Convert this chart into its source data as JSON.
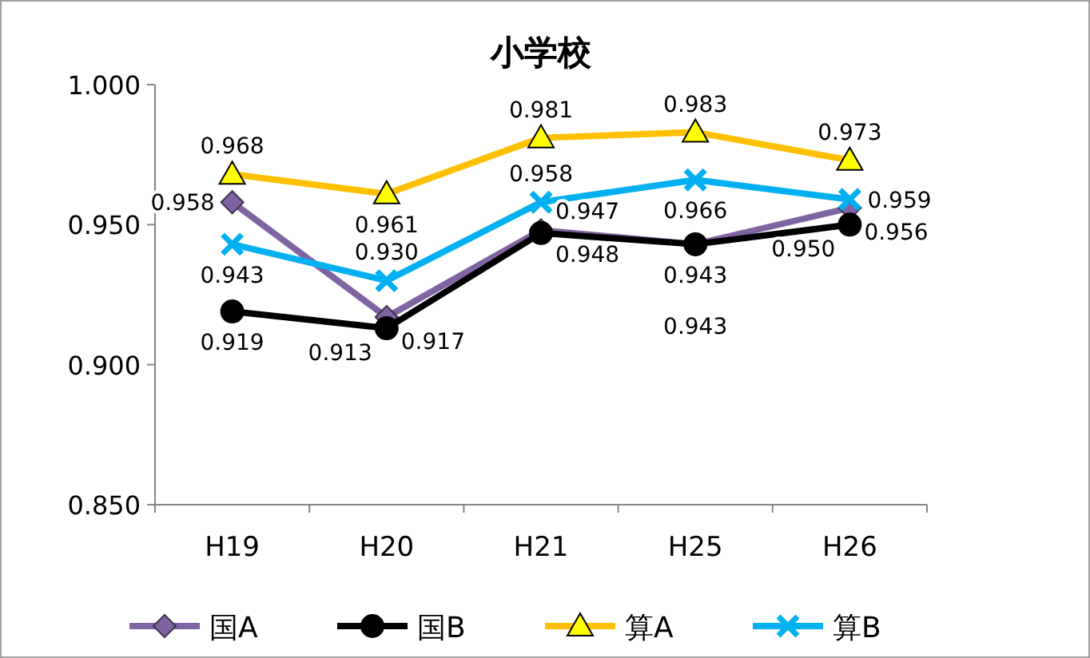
{
  "chart_data": {
    "type": "line",
    "title": "小学校",
    "categories": [
      "H19",
      "H20",
      "H21",
      "H25",
      "H26"
    ],
    "series": [
      {
        "name": "国A",
        "color": "#8064a2",
        "marker": "diamond",
        "values": [
          0.958,
          0.917,
          0.948,
          0.943,
          0.956
        ],
        "value_labels": [
          "0.958",
          "0.917",
          "0.948",
          "0.943",
          "0.956"
        ]
      },
      {
        "name": "国B",
        "color": "#000000",
        "marker": "circle",
        "values": [
          0.919,
          0.913,
          0.947,
          0.943,
          0.95
        ],
        "value_labels": [
          "0.919",
          "0.913",
          "0.947",
          "0.943",
          "0.950"
        ]
      },
      {
        "name": "算A",
        "color": "#ffc000",
        "marker": "triangle",
        "values": [
          0.968,
          0.961,
          0.981,
          0.983,
          0.973
        ],
        "value_labels": [
          "0.968",
          "0.961",
          "0.981",
          "0.983",
          "0.973"
        ]
      },
      {
        "name": "算B",
        "color": "#00b0f0",
        "marker": "cross",
        "values": [
          0.943,
          0.93,
          0.958,
          0.966,
          0.959
        ],
        "value_labels": [
          "0.943",
          "0.930",
          "0.958",
          "0.966",
          "0.959"
        ]
      }
    ],
    "ylim": [
      0.85,
      1.0
    ],
    "yticks": [
      {
        "value": 0.85,
        "label": "0.850"
      },
      {
        "value": 0.9,
        "label": "0.900"
      },
      {
        "value": 0.95,
        "label": "0.950"
      },
      {
        "value": 1.0,
        "label": "1.000"
      }
    ],
    "grid": false,
    "legend": "bottom"
  }
}
